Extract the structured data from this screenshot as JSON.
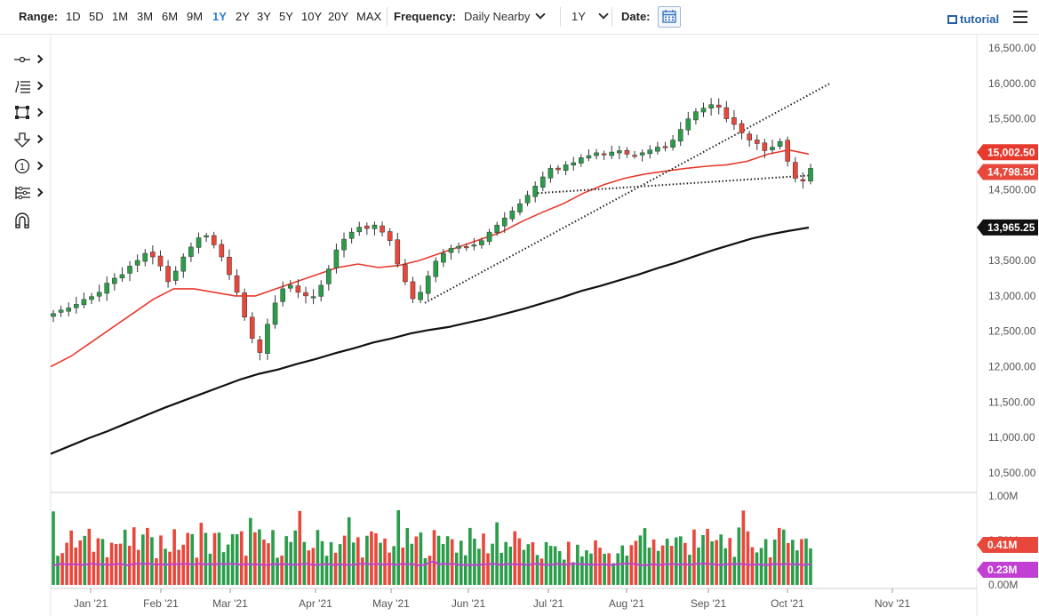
{
  "toolbar": {
    "range_label": "Range:",
    "ranges": [
      "1D",
      "5D",
      "1M",
      "3M",
      "6M",
      "9M",
      "1Y",
      "2Y",
      "3Y",
      "5Y",
      "10Y",
      "20Y",
      "MAX"
    ],
    "active_range": "1Y",
    "frequency_label": "Frequency:",
    "frequency_value": "Daily Nearby",
    "period_value": "1Y",
    "date_label": "Date:",
    "tutorial_label": "tutorial"
  },
  "left_tools": [
    "crosshair-tool-icon",
    "fib-tool-icon",
    "rectangle-tool-icon",
    "arrow-down-tool-icon",
    "number-marker-tool-icon",
    "gann-tool-icon",
    "magnet-tool-icon"
  ],
  "colors": {
    "up": "#2a9d4a",
    "down": "#e8483c",
    "ma50": "#e8392d",
    "ma200": "#111111",
    "vol_avg": "#c13fd3",
    "active": "#2f7fd1"
  },
  "chart_data": {
    "type": "candlestick",
    "price_axis": {
      "range": [
        10250,
        16700
      ],
      "ticks": [
        "16,500.00",
        "16,000.00",
        "15,500.00",
        "15,000.00",
        "14,500.00",
        "14,000.00",
        "13,500.00",
        "13,000.00",
        "12,500.00",
        "12,000.00",
        "11,500.00",
        "11,000.00",
        "10,500.00"
      ]
    },
    "volume_axis": {
      "range": [
        0,
        1.0
      ],
      "ticks": [
        "1.00M",
        "0.50M",
        "0.00M"
      ]
    },
    "x_ticks": [
      "Jan '21",
      "Feb '21",
      "Mar '21",
      "Apr '21",
      "May '21",
      "Jun '21",
      "Jul '21",
      "Aug '21",
      "Sep '21",
      "Oct '21",
      "Nov '21"
    ],
    "price_close": [
      12750,
      12800,
      12830,
      12880,
      12950,
      12990,
      13050,
      13180,
      13250,
      13300,
      13420,
      13500,
      13600,
      13550,
      13420,
      13200,
      13350,
      13550,
      13690,
      13820,
      13850,
      13720,
      13550,
      13300,
      13050,
      12700,
      12400,
      12200,
      12600,
      12900,
      13100,
      13150,
      13050,
      13000,
      12990,
      13150,
      13380,
      13650,
      13800,
      13900,
      13970,
      13950,
      14000,
      13900,
      13780,
      13450,
      13200,
      12960,
      13050,
      13280,
      13490,
      13600,
      13670,
      13700,
      13690,
      13720,
      13780,
      13900,
      14000,
      14100,
      14200,
      14300,
      14420,
      14550,
      14680,
      14800,
      14780,
      14850,
      14880,
      14950,
      14980,
      15020,
      15000,
      15030,
      15050,
      15000,
      14980,
      15020,
      15060,
      15100,
      15100,
      15200,
      15350,
      15500,
      15600,
      15650,
      15700,
      15660,
      15500,
      15420,
      15300,
      15200,
      15150,
      15050,
      15100,
      15180,
      14900,
      14660,
      14620,
      14800
    ],
    "ma50": [
      12000,
      12150,
      12350,
      12550,
      12750,
      12950,
      13100,
      13100,
      13050,
      13000,
      13000,
      13100,
      13200,
      13300,
      13400,
      13450,
      13400,
      13430,
      13500,
      13600,
      13700,
      13800,
      13900,
      14050,
      14180,
      14300,
      14450,
      14570,
      14660,
      14720,
      14760,
      14800,
      14830,
      14850,
      14900,
      15000,
      15060,
      15002
    ],
    "ma200": [
      10770,
      10880,
      10990,
      11090,
      11200,
      11310,
      11420,
      11520,
      11620,
      11720,
      11820,
      11900,
      11960,
      12040,
      12110,
      12190,
      12260,
      12340,
      12400,
      12470,
      12520,
      12560,
      12620,
      12680,
      12750,
      12820,
      12900,
      12980,
      13070,
      13140,
      13220,
      13300,
      13390,
      13470,
      13560,
      13650,
      13730,
      13810,
      13870,
      13920,
      13965
    ],
    "current_labels": {
      "ma50": "15,002.50",
      "price": "14,798.50",
      "ma200": "13,965.25",
      "volume": "0.41M",
      "volume_avg": "0.23M"
    },
    "trendlines": [
      {
        "from": [
          "May '21",
          12900
        ],
        "to": [
          "Oct '21",
          16000
        ]
      },
      {
        "from": [
          "Jul '21",
          14450
        ],
        "to": [
          "Oct '21",
          14700
        ]
      }
    ]
  }
}
